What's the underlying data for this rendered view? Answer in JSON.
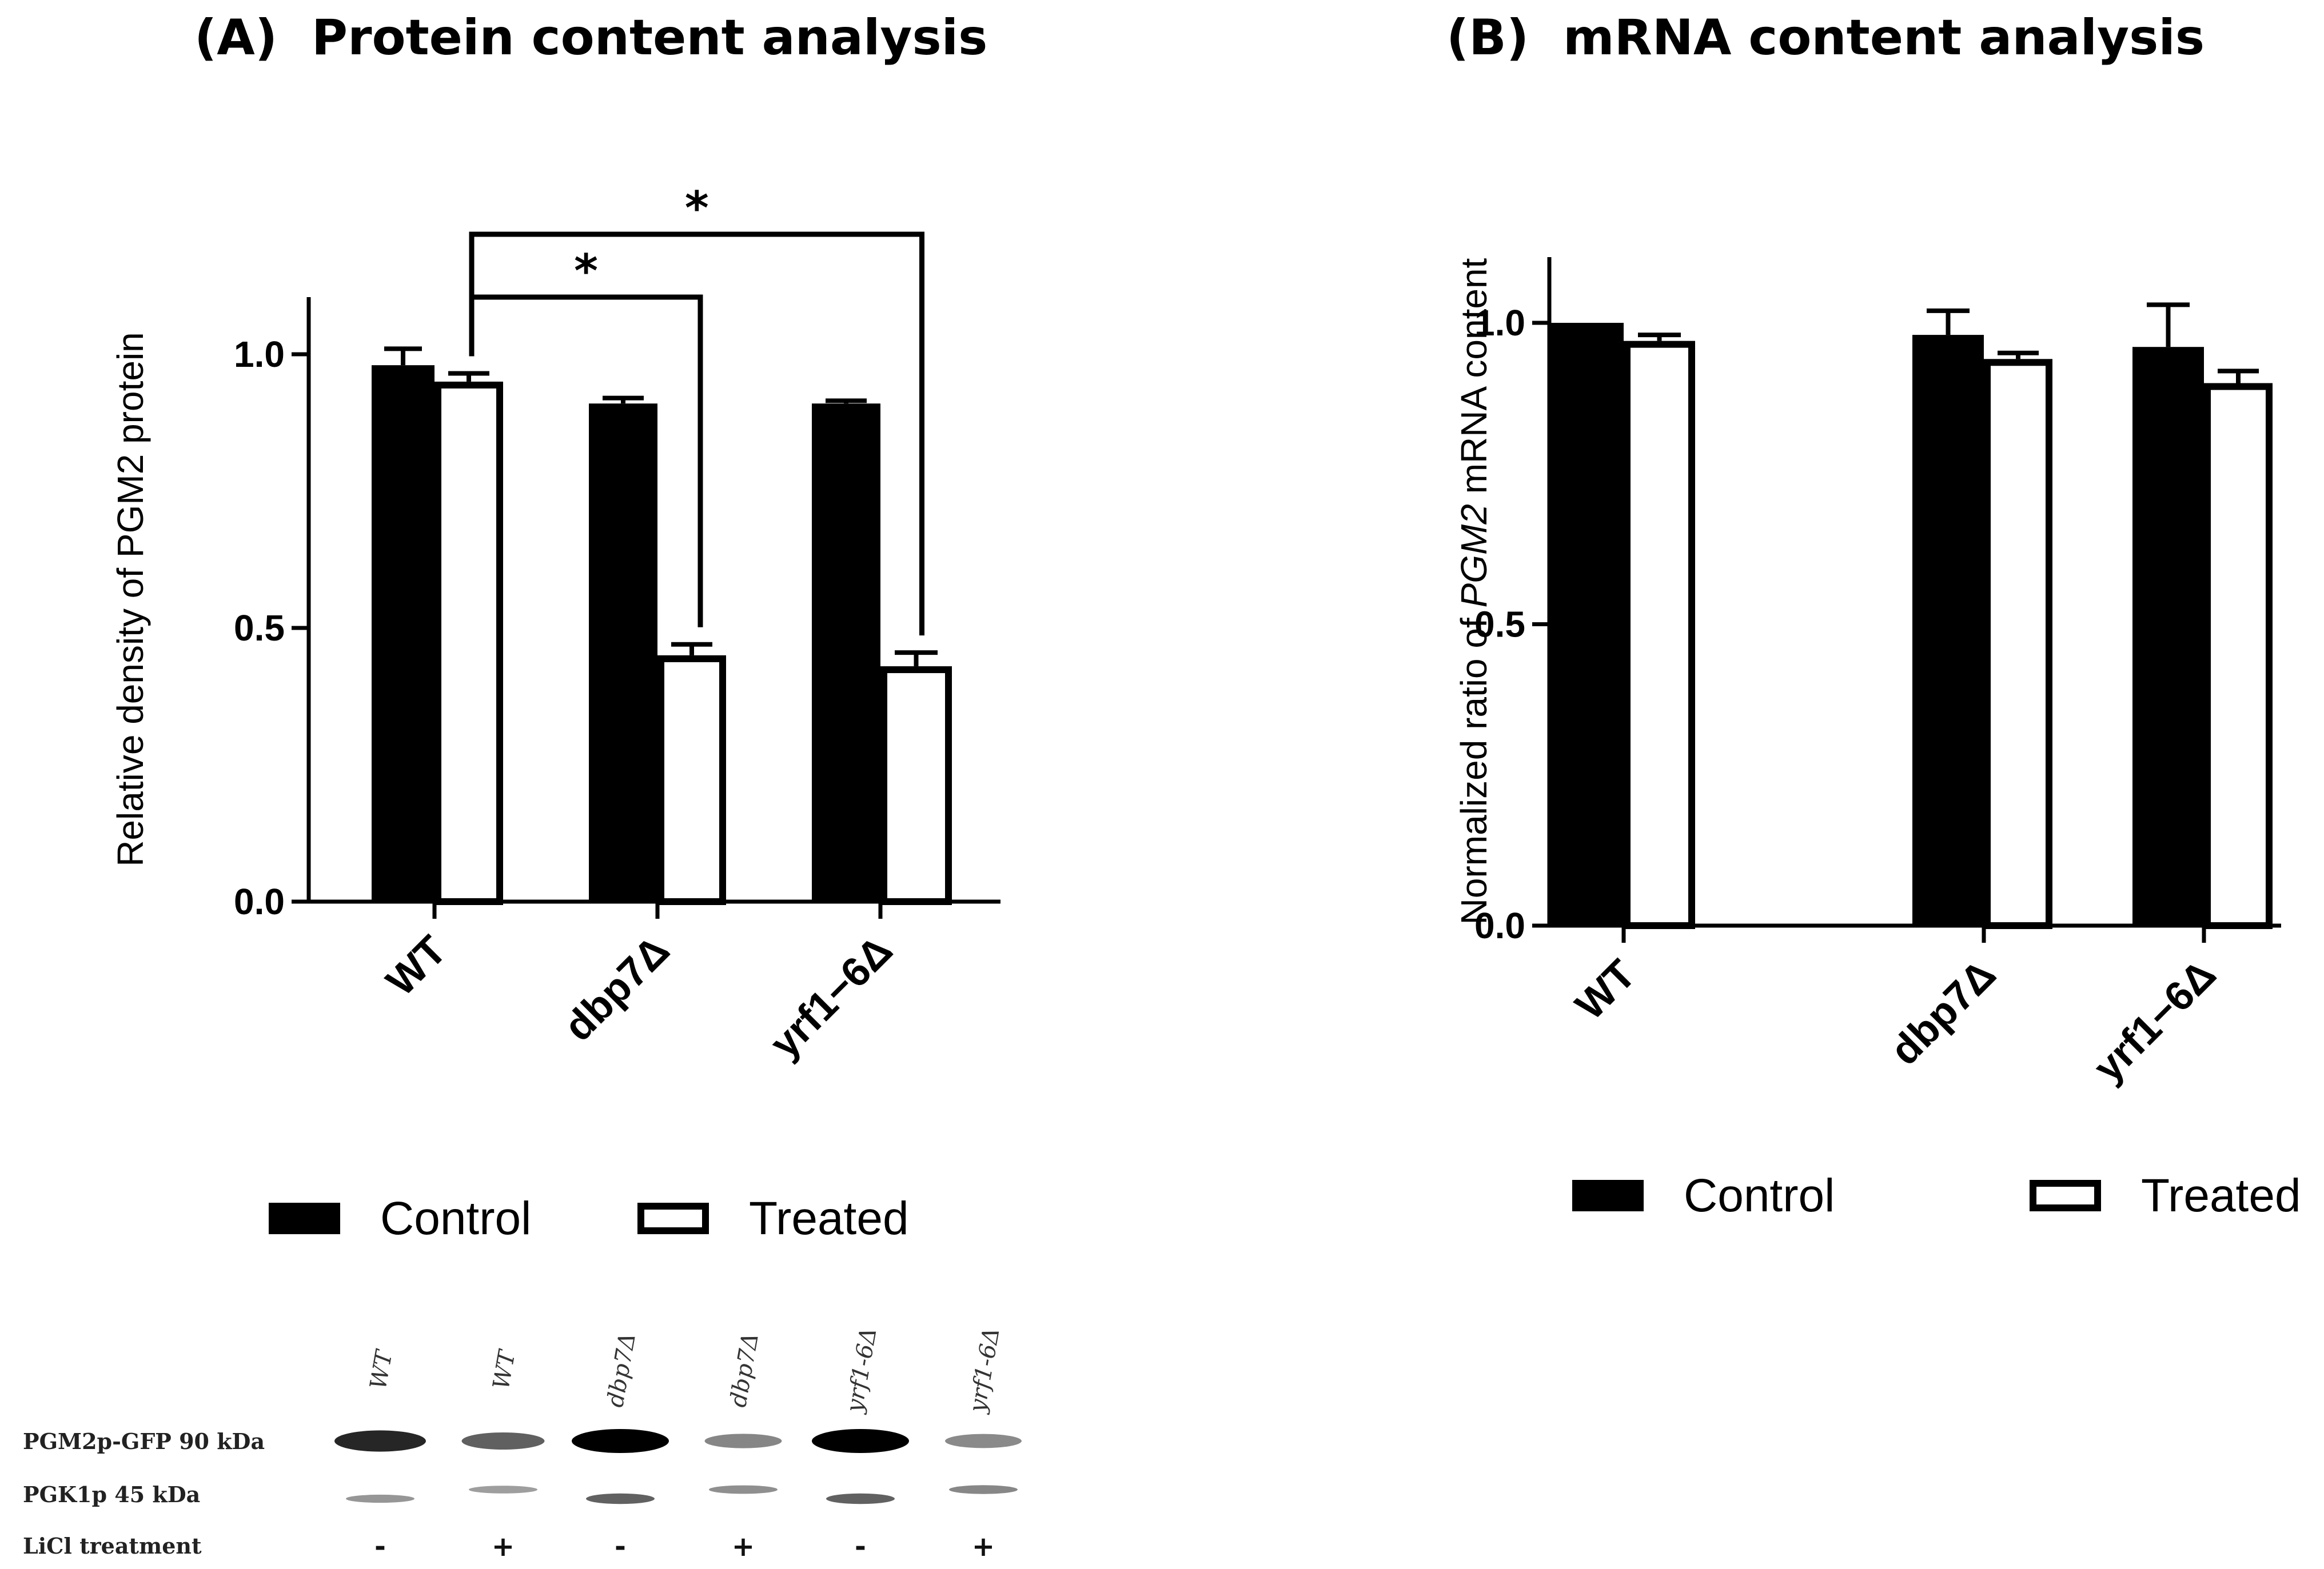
{
  "panel_a": {
    "title": "(A)  Protein content analysis"
  },
  "panel_b": {
    "title": "(B)  mRNA content analysis"
  },
  "chart_data": [
    {
      "type": "bar",
      "title": "(A)  Protein content analysis",
      "xlabel": "",
      "ylabel": "Relative density of PGM2 protein",
      "ylim": [
        0,
        1.1
      ],
      "yticks": [
        "0.0",
        "0.5",
        "1.0"
      ],
      "categories": [
        "WT",
        "dbp7Δ",
        "yrf1−6Δ"
      ],
      "series": [
        {
          "name": "Control",
          "values": [
            0.98,
            0.91,
            0.91
          ],
          "errors": [
            0.03,
            0.01,
            0.005
          ]
        },
        {
          "name": "Treated",
          "values": [
            0.95,
            0.45,
            0.43
          ],
          "errors": [
            0.015,
            0.02,
            0.025
          ]
        }
      ],
      "legend": [
        "Control",
        "Treated"
      ],
      "legend_position": "bottom",
      "significance": [
        {
          "from": "WT Treated",
          "to": "dbp7Δ Treated",
          "label": "*"
        },
        {
          "from": "WT Treated",
          "to": "yrf1−6Δ Treated",
          "label": "*"
        }
      ]
    },
    {
      "type": "bar",
      "title": "(B)  mRNA content analysis",
      "xlabel": "",
      "ylabel_parts": [
        "Normalized ratio of ",
        "PGM2",
        " mRNA content"
      ],
      "ylim": [
        0,
        1.1
      ],
      "yticks": [
        "0.0",
        "0.5",
        "1.0"
      ],
      "categories": [
        "WT",
        "dbp7Δ",
        "yrf1−6Δ"
      ],
      "series": [
        {
          "name": "Control",
          "values": [
            1.0,
            0.98,
            0.96
          ],
          "errors": [
            0.0,
            0.04,
            0.07
          ]
        },
        {
          "name": "Treated",
          "values": [
            0.97,
            0.94,
            0.9
          ],
          "errors": [
            0.01,
            0.01,
            0.02
          ]
        }
      ],
      "legend": [
        "Control",
        "Treated"
      ],
      "legend_position": "bottom"
    }
  ],
  "blot": {
    "lane_labels": [
      "WT",
      "WT",
      "dbp7Δ",
      "dbp7Δ",
      "yrf1-6Δ",
      "yrf1-6Δ"
    ],
    "row_labels": [
      "PGM2p-GFP 90 kDa",
      "PGK1p 45 kDa",
      "LiCl treatment"
    ],
    "treatment": [
      "-",
      "+",
      "-",
      "+",
      "-",
      "+"
    ],
    "band_intensity_pgm2": [
      0.8,
      0.5,
      1.0,
      0.3,
      1.0,
      0.28
    ],
    "band_intensity_pgk1": [
      0.35,
      0.3,
      0.7,
      0.4,
      0.7,
      0.45
    ]
  }
}
